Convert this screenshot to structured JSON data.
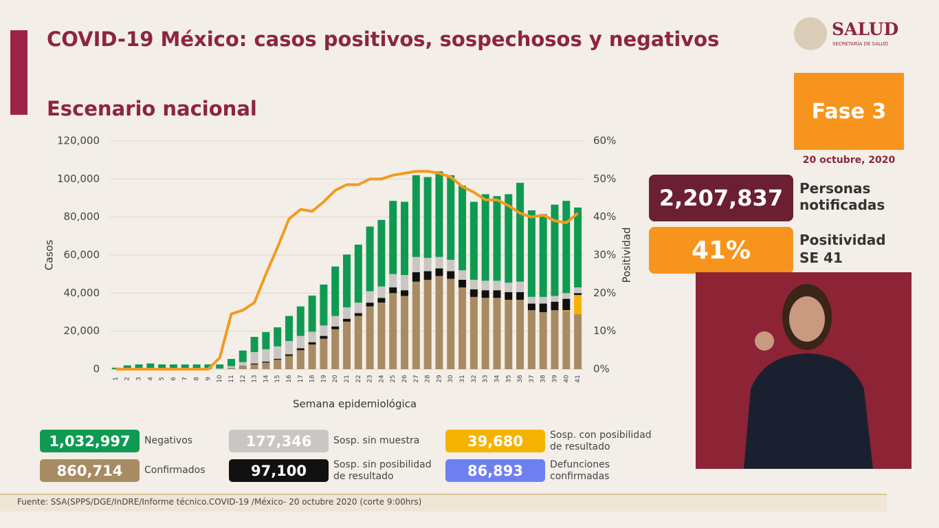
{
  "header": {
    "title": "COVID-19 México: casos positivos, sospechosos y negativos",
    "subtitle": "Escenario nacional",
    "logo": "SALUD",
    "logo_sub": "SECRETARÍA DE SALUD"
  },
  "side": {
    "phase": "Fase 3",
    "date": "20 octubre, 2020",
    "notified": "2,207,837",
    "notified_label": "Personas notificadas",
    "positivity": "41%",
    "positivity_label": "Positividad SE 41"
  },
  "deaths": {
    "total": "86,893",
    "name": "Defunciones confirmadas",
    "color": "#6e80f0"
  },
  "footer": "Fuente: SSA(SPPS/DGE/InDRE/Informe técnico.COVID-19 /México- 20 octubre 2020 (corte 9:00hrs)",
  "chart_data": {
    "type": "bar",
    "stacked": true,
    "x_label": "Semana epidemiológica",
    "y_label": "Casos",
    "y2_label": "Positividad",
    "categories": [
      "1",
      "2",
      "3",
      "4",
      "5",
      "6",
      "7",
      "8",
      "9",
      "10",
      "11",
      "12",
      "13",
      "14",
      "15",
      "16",
      "17",
      "18",
      "19",
      "20",
      "21",
      "22",
      "23",
      "24",
      "25",
      "26",
      "27",
      "28",
      "29",
      "30",
      "31",
      "32",
      "33",
      "34",
      "35",
      "36",
      "37",
      "38",
      "39",
      "40",
      "41"
    ],
    "ylim": [
      0,
      120000
    ],
    "yticks": [
      0,
      {
        "value": 20000,
        "label": "20,000"
      },
      {
        "value": 40000,
        "label": "40,000"
      },
      {
        "value": 60000,
        "label": "60,000"
      },
      {
        "value": 80000,
        "label": "80,000"
      },
      {
        "value": 100000,
        "label": "100,000"
      },
      {
        "value": 120000,
        "label": "120,000"
      }
    ],
    "y2lim": [
      0,
      60
    ],
    "y2ticks": [
      {
        "value": 0,
        "label": "0%"
      },
      {
        "value": 10,
        "label": "10%"
      },
      {
        "value": 20,
        "label": "20%"
      },
      {
        "value": 30,
        "label": "30%"
      },
      {
        "value": 40,
        "label": "40%"
      },
      {
        "value": 50,
        "label": "50%"
      },
      {
        "value": 60,
        "label": "60%"
      }
    ],
    "grid": true,
    "series": [
      {
        "name": "Confirmados",
        "total": "860,714",
        "color": "#a88b63",
        "values": [
          0,
          0,
          0,
          0,
          0,
          0,
          0,
          0,
          0,
          100,
          500,
          1500,
          2500,
          3500,
          5000,
          7000,
          10000,
          13000,
          16000,
          21000,
          25000,
          28000,
          33000,
          35000,
          40000,
          38500,
          46000,
          47000,
          49000,
          47500,
          43000,
          38000,
          37500,
          37500,
          36500,
          36500,
          31000,
          30000,
          31000,
          30500,
          29000
        ]
      },
      {
        "name": "Sosp. con posibilidad de resultado",
        "total": "39,680",
        "color": "#f5b301",
        "values": [
          0,
          0,
          0,
          0,
          0,
          0,
          0,
          0,
          0,
          0,
          0,
          0,
          0,
          0,
          0,
          0,
          0,
          0,
          0,
          0,
          0,
          0,
          0,
          0,
          0,
          0,
          0,
          0,
          0,
          0,
          0,
          0,
          0,
          0,
          0,
          0,
          0,
          0,
          0,
          500,
          10000
        ]
      },
      {
        "name": "Sosp. sin posibilidad de resultado",
        "total": "97,100",
        "color": "#111111",
        "values": [
          0,
          0,
          0,
          0,
          0,
          0,
          0,
          0,
          0,
          0,
          100,
          200,
          500,
          500,
          500,
          800,
          1000,
          1200,
          1500,
          1500,
          1500,
          1500,
          2000,
          2500,
          3000,
          3000,
          5000,
          4500,
          4000,
          4000,
          4000,
          4000,
          4000,
          4000,
          4000,
          4000,
          3500,
          4500,
          4500,
          6000,
          1000
        ]
      },
      {
        "name": "Sosp. sin muestra",
        "total": "177,346",
        "color": "#c9c6c3",
        "values": [
          0,
          0,
          0,
          0,
          0,
          0,
          0,
          0,
          200,
          300,
          1000,
          2000,
          6000,
          6500,
          6500,
          7000,
          6500,
          5500,
          5500,
          5500,
          6000,
          5500,
          6000,
          6000,
          7000,
          8000,
          8000,
          7000,
          6000,
          6000,
          5000,
          5000,
          5000,
          5000,
          5000,
          5500,
          3500,
          3500,
          3000,
          3000,
          3000
        ]
      },
      {
        "name": "Negativos",
        "total": "1,032,997",
        "color": "#0f9a52",
        "values": [
          800,
          2000,
          2500,
          3000,
          2500,
          2500,
          2500,
          2500,
          2300,
          2100,
          3800,
          6100,
          8000,
          9000,
          10000,
          13200,
          15500,
          19000,
          21500,
          26000,
          27800,
          30500,
          34000,
          35000,
          38500,
          38500,
          43000,
          42500,
          45000,
          44500,
          44500,
          41000,
          45500,
          44500,
          46500,
          52000,
          45500,
          43500,
          48000,
          48500,
          42000
        ]
      },
      {
        "type": "line",
        "axis": "y2",
        "color": "#f39a1e",
        "values": [
          0,
          0,
          0,
          0,
          0,
          0,
          0,
          0,
          0,
          3,
          14.5,
          15.5,
          17.5,
          25,
          32,
          39.5,
          42,
          41.5,
          44,
          47,
          48.5,
          48.5,
          50,
          50,
          51,
          51.5,
          52,
          52,
          51.5,
          50.5,
          48,
          46.5,
          44.5,
          44.5,
          43,
          41,
          40,
          40.5,
          39,
          38.5,
          41
        ]
      }
    ]
  }
}
